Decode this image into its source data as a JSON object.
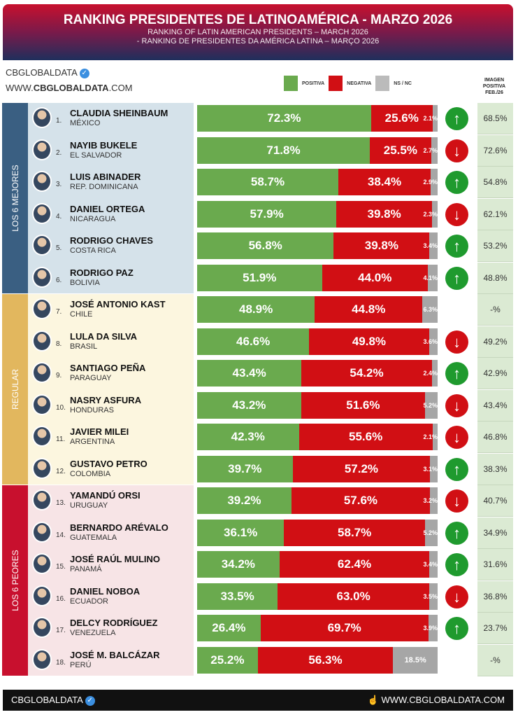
{
  "header": {
    "title": "RANKING PRESIDENTES DE LATINOAMÉRICA - MARZO 2026",
    "subtitle_en": "RANKING OF LATIN AMERICAN PRESIDENTS – MARCH 2026",
    "subtitle_pt": "- RANKING DE PRESIDENTES DA AMÉRICA LATINA – MARÇO 2026"
  },
  "brand": {
    "name": "CBGLOBALDATA",
    "url_prefix": "WWW.",
    "url_main": "CBGLOBALDATA",
    "url_suffix": ".COM",
    "verified_icon": "✓"
  },
  "legend": {
    "positive": "POSITIVA",
    "negative": "NEGATIVA",
    "ns": "NS / NC"
  },
  "colors": {
    "positive": "#6aaa4e",
    "negative": "#d10f14",
    "ns": "#a6a6a6",
    "up": "#1f9a2e",
    "down": "#d10f14"
  },
  "prev_header": "IMAGEN POSITIVA FEB./26",
  "groups": [
    {
      "label": "LOS 6 MEJORES",
      "color": "#3a5f82",
      "bg": "#d5e2ea"
    },
    {
      "label": "REGULAR",
      "color": "#e2b75e",
      "bg": "#fcf6df"
    },
    {
      "label": "LOS 6 PEORES",
      "color": "#c8102e",
      "bg": "#f7e4e6"
    }
  ],
  "chart_data": {
    "type": "bar",
    "stacked": true,
    "orientation": "horizontal",
    "series_names": [
      "POSITIVA",
      "NEGATIVA",
      "NS / NC"
    ],
    "rows": [
      {
        "rank": "1.",
        "name": "CLAUDIA SHEINBAUM",
        "country": "MÉXICO",
        "pos": 72.3,
        "neg": 25.6,
        "ns": 2.1,
        "trend": "up",
        "prev": "68.5%"
      },
      {
        "rank": "2.",
        "name": "NAYIB BUKELE",
        "country": "EL SALVADOR",
        "pos": 71.8,
        "neg": 25.5,
        "ns": 2.7,
        "trend": "down",
        "prev": "72.6%"
      },
      {
        "rank": "3.",
        "name": "LUIS ABINADER",
        "country": "REP. DOMINICANA",
        "pos": 58.7,
        "neg": 38.4,
        "ns": 2.9,
        "trend": "up",
        "prev": "54.8%"
      },
      {
        "rank": "4.",
        "name": "DANIEL ORTEGA",
        "country": "NICARAGUA",
        "pos": 57.9,
        "neg": 39.8,
        "ns": 2.3,
        "trend": "down",
        "prev": "62.1%"
      },
      {
        "rank": "5.",
        "name": "RODRIGO CHAVES",
        "country": "COSTA RICA",
        "pos": 56.8,
        "neg": 39.8,
        "ns": 3.4,
        "trend": "up",
        "prev": "53.2%"
      },
      {
        "rank": "6.",
        "name": "RODRIGO PAZ",
        "country": "BOLIVIA",
        "pos": 51.9,
        "neg": 44.0,
        "ns": 4.1,
        "trend": "up",
        "prev": "48.8%"
      },
      {
        "rank": "7.",
        "name": "JOSÉ ANTONIO KAST",
        "country": "CHILE",
        "pos": 48.9,
        "neg": 44.8,
        "ns": 6.3,
        "trend": "",
        "prev": "-%"
      },
      {
        "rank": "8.",
        "name": "LULA DA SILVA",
        "country": "BRASIL",
        "pos": 46.6,
        "neg": 49.8,
        "ns": 3.6,
        "trend": "down",
        "prev": "49.2%"
      },
      {
        "rank": "9.",
        "name": "SANTIAGO PEÑA",
        "country": "PARAGUAY",
        "pos": 43.4,
        "neg": 54.2,
        "ns": 2.4,
        "trend": "up",
        "prev": "42.9%"
      },
      {
        "rank": "10.",
        "name": "NASRY ASFURA",
        "country": "HONDURAS",
        "pos": 43.2,
        "neg": 51.6,
        "ns": 5.2,
        "trend": "down",
        "prev": "43.4%"
      },
      {
        "rank": "11.",
        "name": "JAVIER MILEI",
        "country": "ARGENTINA",
        "pos": 42.3,
        "neg": 55.6,
        "ns": 2.1,
        "trend": "down",
        "prev": "46.8%"
      },
      {
        "rank": "12.",
        "name": "GUSTAVO PETRO",
        "country": "COLOMBIA",
        "pos": 39.7,
        "neg": 57.2,
        "ns": 3.1,
        "trend": "up",
        "prev": "38.3%"
      },
      {
        "rank": "13.",
        "name": "YAMANDÚ ORSI",
        "country": "URUGUAY",
        "pos": 39.2,
        "neg": 57.6,
        "ns": 3.2,
        "trend": "down",
        "prev": "40.7%"
      },
      {
        "rank": "14.",
        "name": "BERNARDO ARÉVALO",
        "country": "GUATEMALA",
        "pos": 36.1,
        "neg": 58.7,
        "ns": 5.2,
        "trend": "up",
        "prev": "34.9%"
      },
      {
        "rank": "15.",
        "name": "JOSÉ RAÚL MULINO",
        "country": "PANAMÁ",
        "pos": 34.2,
        "neg": 62.4,
        "ns": 3.4,
        "trend": "up",
        "prev": "31.6%"
      },
      {
        "rank": "16.",
        "name": "DANIEL NOBOA",
        "country": "ECUADOR",
        "pos": 33.5,
        "neg": 63.0,
        "ns": 3.5,
        "trend": "down",
        "prev": "36.8%"
      },
      {
        "rank": "17.",
        "name": "DELCY RODRÍGUEZ",
        "country": "VENEZUELA",
        "pos": 26.4,
        "neg": 69.7,
        "ns": 3.9,
        "trend": "up",
        "prev": "23.7%"
      },
      {
        "rank": "18.",
        "name": "JOSÉ M. BALCÁZAR",
        "country": "PERÚ",
        "pos": 25.2,
        "neg": 56.3,
        "ns": 18.5,
        "trend": "",
        "prev": "-%"
      }
    ]
  },
  "footer": {
    "brand": "CBGLOBALDATA",
    "url": "WWW.CBGLOBALDATA.COM",
    "hand_icon": "☝"
  }
}
